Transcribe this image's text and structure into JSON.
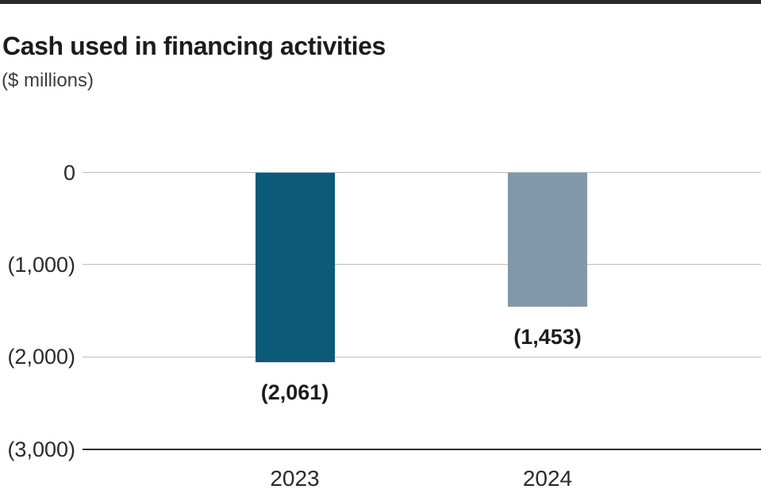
{
  "header": {
    "title": "Cash used in financing activities",
    "subtitle": "($ millions)"
  },
  "colors": {
    "bar_2023": "#0a5a78",
    "bar_2024": "#8198aa",
    "gridline": "#bcbcbc",
    "axis_line": "#2b2b2b",
    "top_border": "#2b2b2b",
    "title_text": "#1c1c1c",
    "tick_text": "#2a2a2a"
  },
  "chart_data": {
    "type": "bar",
    "title": "Cash used in financing activities",
    "subtitle": "($ millions)",
    "unit": "$ millions",
    "categories": [
      "2023",
      "2024"
    ],
    "values": [
      -2061,
      -1453
    ],
    "value_labels": [
      "(2,061)",
      "(1,453)"
    ],
    "bar_colors": [
      "#0a5a78",
      "#8198aa"
    ],
    "ylim": [
      -3000,
      0
    ],
    "yticks": [
      0,
      -1000,
      -2000,
      -3000
    ],
    "ytick_labels": [
      "0",
      "(1,000)",
      "(2,000)",
      "(3,000)"
    ],
    "grid": "horizontal",
    "baseline_tick": -3000,
    "legend": "none",
    "orientation": "vertical",
    "negative_format": "parentheses"
  }
}
